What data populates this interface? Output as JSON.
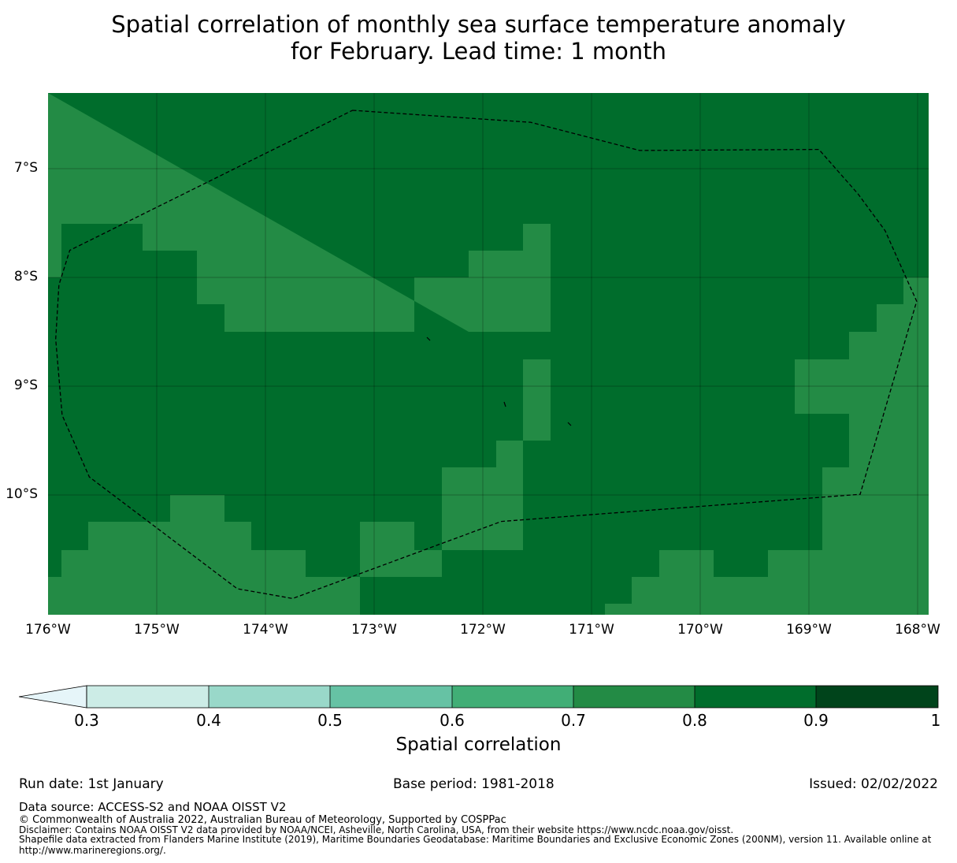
{
  "title": {
    "line1": "Spatial correlation of monthly sea surface temperature anomaly",
    "line2": "for February. Lead time: 1 month"
  },
  "map": {
    "lat_labels": [
      "7°S",
      "8°S",
      "9°S",
      "10°S"
    ],
    "lon_labels": [
      "176°W",
      "175°W",
      "174°W",
      "173°W",
      "172°W",
      "171°W",
      "170°W",
      "169°W",
      "168°W"
    ],
    "lon_range": [
      -176,
      -167.9
    ],
    "lat_range": [
      -11.14,
      -6.33
    ],
    "eez_boundary": [
      [
        -173.2,
        -6.49
      ],
      [
        -171.56,
        -6.6
      ],
      [
        -170.56,
        -6.86
      ],
      [
        -168.91,
        -6.85
      ],
      [
        -168.55,
        -7.26
      ],
      [
        -168.3,
        -7.6
      ],
      [
        -168.1,
        -8.05
      ],
      [
        -168.01,
        -8.25
      ],
      [
        -168.53,
        -10.03
      ],
      [
        -171.83,
        -10.28
      ],
      [
        -173.75,
        -10.99
      ],
      [
        -174.26,
        -10.9
      ],
      [
        -175.62,
        -9.87
      ],
      [
        -175.87,
        -9.3
      ],
      [
        -175.93,
        -8.6
      ],
      [
        -175.9,
        -8.1
      ],
      [
        -175.8,
        -7.78
      ]
    ]
  },
  "colorbar": {
    "ticks": [
      "0.3",
      "0.4",
      "0.5",
      "0.6",
      "0.7",
      "0.8",
      "0.9",
      "1"
    ],
    "colors": [
      "#e6f5f9",
      "#ccece6",
      "#99d8c9",
      "#66c2a4",
      "#41ae76",
      "#238b45",
      "#006d2c",
      "#00441b"
    ],
    "label": "Spatial correlation"
  },
  "footer": {
    "run_date": "Run date: 1st January",
    "base_period": "Base period: 1981-2018",
    "issued": "Issued: 02/02/2022",
    "data_source": "Data source: ACCESS-S2 and NOAA OISST V2",
    "copyright": "© Commonwealth of Australia 2022, Australian Bureau of Meteorology, Supported by COSPPac",
    "disclaimer": "Disclaimer: Contains NOAA OISST V2 data provided by NOAA/NCEI, Asheville, North Carolina, USA, from their website https://www.ncdc.noaa.gov/oisst.",
    "shapefile_1": "Shapefile data extracted from Flanders Marine Institute (2019), Maritime Boundaries Geodatabase: Maritime Boundaries and Exclusive Economic Zones (200NM), version 11. Available online at",
    "shapefile_2": "http://www.marineregions.org/."
  }
}
